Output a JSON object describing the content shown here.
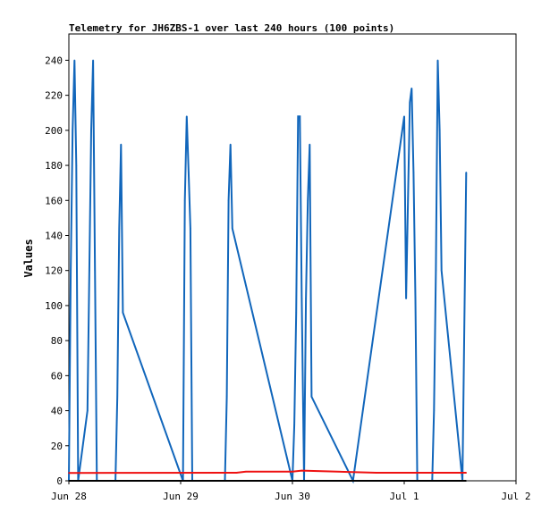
{
  "chart_data": {
    "type": "line",
    "title": "Telemetry for JH6ZBS-1 over last 240 hours (100 points)",
    "xlabel": "",
    "ylabel": "Values",
    "x_range": [
      "Jun 28",
      "Jul 2"
    ],
    "ylim": [
      0,
      255
    ],
    "x_ticks": [
      "Jun 28",
      "Jun 29",
      "Jun 30",
      "Jul 1",
      "Jul 2"
    ],
    "y_ticks": [
      0,
      20,
      40,
      60,
      80,
      100,
      120,
      140,
      160,
      180,
      200,
      220,
      240
    ],
    "grid": false,
    "legend": "none",
    "series": [
      {
        "color": "#1166bb",
        "x": [
          "Jun 28 00:00",
          "Jun 28 00:24",
          "Jun 28 00:48",
          "Jun 28 01:12",
          "Jun 28 01:36",
          "Jun 28 02:00",
          "Jun 28 04:00",
          "Jun 28 04:24",
          "Jun 28 04:48",
          "Jun 28 05:12",
          "Jun 28 05:36",
          "Jun 28 06:00",
          "Jun 28 10:00",
          "Jun 28 10:24",
          "Jun 28 10:48",
          "Jun 28 11:12",
          "Jun 28 11:36",
          "Jun 29 00:30",
          "Jun 29 00:54",
          "Jun 29 01:18",
          "Jun 29 01:42",
          "Jun 29 02:06",
          "Jun 29 02:30",
          "Jun 29 09:30",
          "Jun 29 09:54",
          "Jun 29 10:18",
          "Jun 29 10:42",
          "Jun 29 11:06",
          "Jun 30 00:00",
          "Jun 30 00:24",
          "Jun 30 00:48",
          "Jun 30 01:12",
          "Jun 30 01:36",
          "Jun 30 02:00",
          "Jun 30 02:30",
          "Jun 30 02:54",
          "Jun 30 03:18",
          "Jun 30 03:42",
          "Jun 30 04:06",
          "Jun 30 13:00",
          "Jul 1 00:00",
          "Jul 1 00:24",
          "Jul 1 00:48",
          "Jul 1 01:12",
          "Jul 1 01:36",
          "Jul 1 02:00",
          "Jul 1 02:24",
          "Jul 1 02:48",
          "Jul 1 06:00",
          "Jul 1 06:24",
          "Jul 1 06:48",
          "Jul 1 07:12",
          "Jul 1 07:36",
          "Jul 1 08:00",
          "Jul 1 12:30",
          "Jul 1 12:54",
          "Jul 1 13:18"
        ],
        "values": [
          0,
          120,
          200,
          240,
          180,
          0,
          40,
          120,
          200,
          240,
          120,
          0,
          0,
          48,
          144,
          192,
          96,
          0,
          160,
          208,
          176,
          144,
          0,
          0,
          48,
          160,
          192,
          144,
          0,
          32,
          96,
          208,
          208,
          104,
          0,
          104,
          160,
          192,
          48,
          0,
          208,
          104,
          160,
          216,
          224,
          176,
          104,
          0,
          0,
          40,
          120,
          240,
          200,
          120,
          0,
          88,
          176
        ]
      },
      {
        "color": "#ee1111",
        "x": [
          "Jun 28 00:00",
          "Jun 29 12:00",
          "Jun 29 14:00",
          "Jun 30 00:00",
          "Jun 30 02:00",
          "Jun 30 18:00",
          "Jul 1 13:18"
        ],
        "values": [
          4.5,
          4.6,
          5.2,
          5.2,
          5.8,
          4.6,
          4.6
        ]
      },
      {
        "color": "#000000",
        "x": [
          "Jun 28 00:00",
          "Jul 1 13:18"
        ],
        "values": [
          0,
          0
        ]
      }
    ]
  }
}
